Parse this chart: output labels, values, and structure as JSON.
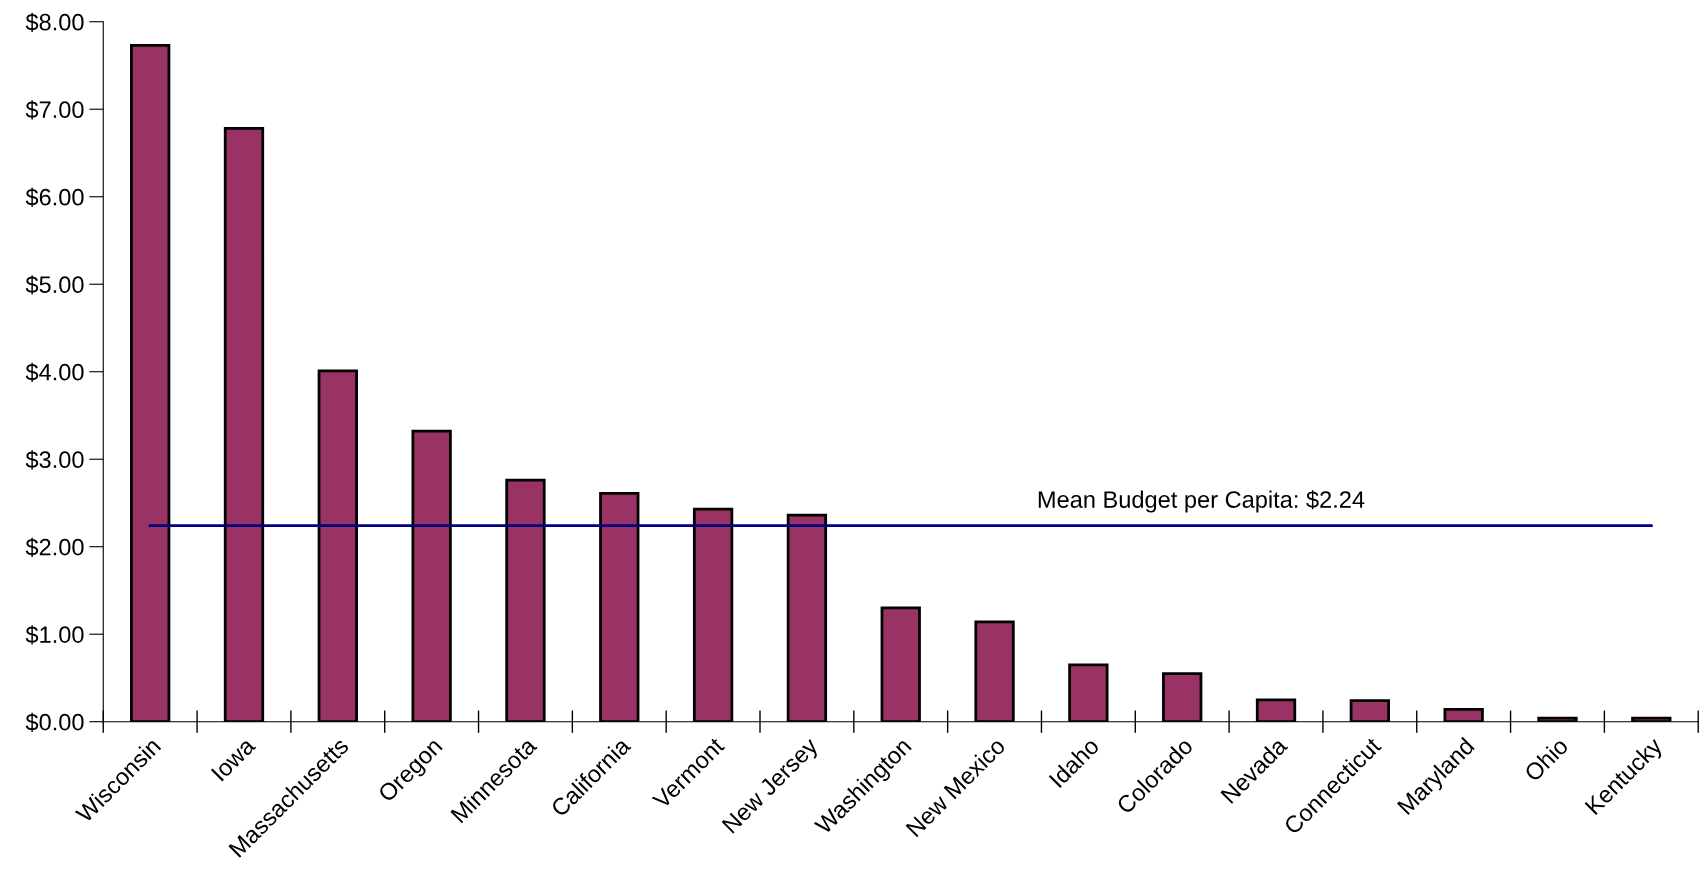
{
  "chart_data": {
    "type": "bar",
    "categories": [
      "Wisconsin",
      "Iowa",
      "Massachusetts",
      "Oregon",
      "Minnesota",
      "California",
      "Vermont",
      "New Jersey",
      "Washington",
      "New Mexico",
      "Idaho",
      "Colorado",
      "Nevada",
      "Connecticut",
      "Maryland",
      "Ohio",
      "Kentucky"
    ],
    "values": [
      7.73,
      6.78,
      4.01,
      3.32,
      2.76,
      2.61,
      2.43,
      2.36,
      1.3,
      1.14,
      0.65,
      0.55,
      0.25,
      0.24,
      0.14,
      0.04,
      0.04
    ],
    "color": "#993366",
    "ylim": [
      0,
      8
    ],
    "yticks": [
      {
        "value": 0,
        "label": "$0.00"
      },
      {
        "value": 1,
        "label": "$1.00"
      },
      {
        "value": 2,
        "label": "$2.00"
      },
      {
        "value": 3,
        "label": "$3.00"
      },
      {
        "value": 4,
        "label": "$4.00"
      },
      {
        "value": 5,
        "label": "$5.00"
      },
      {
        "value": 6,
        "label": "$6.00"
      },
      {
        "value": 7,
        "label": "$7.00"
      },
      {
        "value": 8,
        "label": "$8.00"
      }
    ],
    "ref_lines": [
      {
        "axis": "y",
        "value": 2.24,
        "label": "Mean Budget per Capita: $2.24",
        "color": "#000080"
      }
    ],
    "grid": false,
    "legend": false
  }
}
